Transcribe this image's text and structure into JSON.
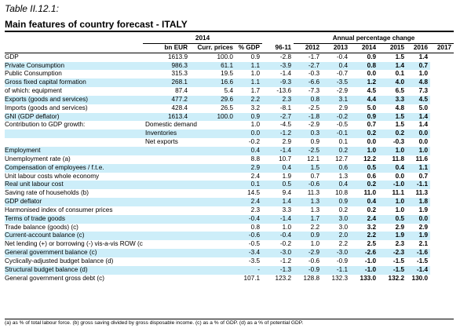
{
  "caption": "Table II.12.1:",
  "title": "Main features of country forecast - ITALY",
  "header": {
    "group_2014": "2014",
    "group_apc": "Annual percentage change",
    "cols": [
      "bn EUR",
      "Curr. prices",
      "% GDP",
      "96-11",
      "2012",
      "2013",
      "2014",
      "2015",
      "2016",
      "2017"
    ]
  },
  "rows": [
    {
      "label": "GDP",
      "sub": "",
      "v": [
        "1613.9",
        "100.0",
        "0.9",
        "-2.8",
        "-1.7",
        "-0.4",
        "0.9",
        "1.5",
        "1.4"
      ]
    },
    {
      "label": "Private Consumption",
      "sub": "",
      "v": [
        "986.3",
        "61.1",
        "1.1",
        "-3.9",
        "-2.7",
        "0.4",
        "0.8",
        "1.4",
        "0.7"
      ]
    },
    {
      "label": "Public Consumption",
      "sub": "",
      "v": [
        "315.3",
        "19.5",
        "1.0",
        "-1.4",
        "-0.3",
        "-0.7",
        "0.0",
        "0.1",
        "1.0"
      ]
    },
    {
      "label": "Gross fixed capital formation",
      "sub": "",
      "v": [
        "268.1",
        "16.6",
        "1.1",
        "-9.3",
        "-6.6",
        "-3.5",
        "1.2",
        "4.0",
        "4.8"
      ]
    },
    {
      "label": "of which: equipment",
      "sub": "",
      "v": [
        "87.4",
        "5.4",
        "1.7",
        "-13.6",
        "-7.3",
        "-2.9",
        "4.5",
        "6.5",
        "7.3"
      ]
    },
    {
      "label": "Exports (goods and services)",
      "sub": "",
      "v": [
        "477.2",
        "29.6",
        "2.2",
        "2.3",
        "0.8",
        "3.1",
        "4.4",
        "3.3",
        "4.5"
      ]
    },
    {
      "label": "Imports (goods and services)",
      "sub": "",
      "v": [
        "428.4",
        "26.5",
        "3.2",
        "-8.1",
        "-2.5",
        "2.9",
        "5.0",
        "4.8",
        "5.0"
      ]
    },
    {
      "label": "GNI (GDP deflator)",
      "sub": "",
      "v": [
        "1613.4",
        "100.0",
        "0.9",
        "-2.7",
        "-1.8",
        "-0.2",
        "0.9",
        "1.5",
        "1.4"
      ]
    },
    {
      "label": "Contribution to GDP growth:",
      "sub": "Domestic demand",
      "v": [
        "",
        "",
        "1.0",
        "-4.5",
        "-2.9",
        "-0.5",
        "0.7",
        "1.5",
        "1.4"
      ]
    },
    {
      "label": "",
      "sub": "Inventories",
      "v": [
        "",
        "",
        "0.0",
        "-1.2",
        "0.3",
        "-0.1",
        "0.2",
        "0.2",
        "0.0"
      ]
    },
    {
      "label": "",
      "sub": "Net exports",
      "v": [
        "",
        "",
        "-0.2",
        "2.9",
        "0.9",
        "0.1",
        "0.0",
        "-0.3",
        "0.0"
      ]
    },
    {
      "label": "Employment",
      "sub": "",
      "v": [
        "",
        "",
        "0.4",
        "-1.4",
        "-2.5",
        "0.2",
        "1.0",
        "1.0",
        "1.0"
      ]
    },
    {
      "label": "Unemployment rate (a)",
      "sub": "",
      "v": [
        "",
        "",
        "8.8",
        "10.7",
        "12.1",
        "12.7",
        "12.2",
        "11.8",
        "11.6"
      ]
    },
    {
      "label": "Compensation of employees / f.t.e.",
      "sub": "",
      "v": [
        "",
        "",
        "2.9",
        "0.4",
        "1.5",
        "0.6",
        "0.5",
        "0.4",
        "1.1"
      ]
    },
    {
      "label": "Unit labour costs whole economy",
      "sub": "",
      "v": [
        "",
        "",
        "2.4",
        "1.9",
        "0.7",
        "1.3",
        "0.6",
        "0.0",
        "0.7"
      ]
    },
    {
      "label": "Real unit labour cost",
      "sub": "",
      "v": [
        "",
        "",
        "0.1",
        "0.5",
        "-0.6",
        "0.4",
        "0.2",
        "-1.0",
        "-1.1"
      ]
    },
    {
      "label": "Saving rate of households (b)",
      "sub": "",
      "v": [
        "",
        "",
        "14.5",
        "9.4",
        "11.3",
        "10.8",
        "11.0",
        "11.1",
        "11.3"
      ]
    },
    {
      "label": "GDP deflator",
      "sub": "",
      "v": [
        "",
        "",
        "2.4",
        "1.4",
        "1.3",
        "0.9",
        "0.4",
        "1.0",
        "1.8"
      ]
    },
    {
      "label": "Harmonised index of consumer prices",
      "sub": "",
      "v": [
        "",
        "",
        "2.3",
        "3.3",
        "1.3",
        "0.2",
        "0.2",
        "1.0",
        "1.9"
      ]
    },
    {
      "label": "Terms of trade goods",
      "sub": "",
      "v": [
        "",
        "",
        "-0.4",
        "-1.4",
        "1.7",
        "3.0",
        "2.4",
        "0.5",
        "0.0"
      ]
    },
    {
      "label": "Trade balance (goods) (c)",
      "sub": "",
      "v": [
        "",
        "",
        "0.8",
        "1.0",
        "2.2",
        "3.0",
        "3.2",
        "2.9",
        "2.9"
      ]
    },
    {
      "label": "Current-account balance (c)",
      "sub": "",
      "v": [
        "",
        "",
        "-0.6",
        "-0.4",
        "0.9",
        "2.0",
        "2.2",
        "1.9",
        "1.9"
      ]
    },
    {
      "label": "Net lending (+) or borrowing (-) vis-a-vis ROW (c)",
      "sub": "",
      "v": [
        "",
        "",
        "-0.5",
        "-0.2",
        "1.0",
        "2.2",
        "2.5",
        "2.3",
        "2.1"
      ]
    },
    {
      "label": "General government balance (c)",
      "sub": "",
      "v": [
        "",
        "",
        "-3.4",
        "-3.0",
        "-2.9",
        "-3.0",
        "-2.6",
        "-2.3",
        "-1.6"
      ]
    },
    {
      "label": "Cyclically-adjusted budget balance (d)",
      "sub": "",
      "v": [
        "",
        "",
        "-3.5",
        "-1.2",
        "-0.6",
        "-0.9",
        "-1.0",
        "-1.5",
        "-1.5"
      ]
    },
    {
      "label": "Structural budget balance (d)",
      "sub": "",
      "v": [
        "",
        "",
        "-",
        "-1.3",
        "-0.9",
        "-1.1",
        "-1.0",
        "-1.5",
        "-1.4"
      ]
    },
    {
      "label": "General government gross debt (c)",
      "sub": "",
      "v": [
        "",
        "",
        "107.1",
        "123.2",
        "128.8",
        "132.3",
        "133.0",
        "132.2",
        "130.0"
      ]
    }
  ],
  "footnote": "(a) as % of total labour force. (b) gross saving divided by gross disposable income. (c) as a % of GDP. (d) as a % of potential GDP."
}
